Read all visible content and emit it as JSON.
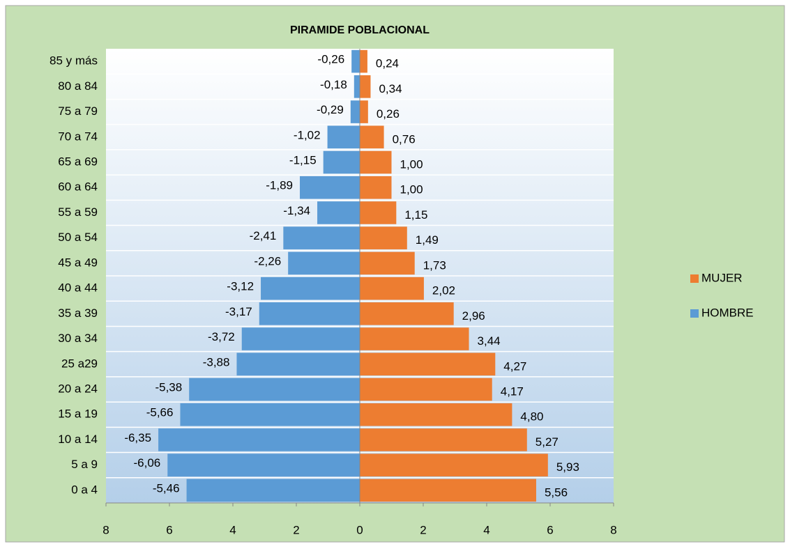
{
  "chart_data": {
    "type": "bar",
    "orientation": "horizontal",
    "title": "PIRAMIDE POBLACIONAL",
    "categories": [
      "85 y más",
      "80 a 84",
      "75 a 79",
      "70 a 74",
      "65 a 69",
      "60 a 64",
      "55 a 59",
      "50 a 54",
      "45 a 49",
      "40 a 44",
      "35 a 39",
      "30 a 34",
      "25 a29",
      "20 a 24",
      "15 a 19",
      "10 a 14",
      "5 a 9",
      "0 a 4"
    ],
    "series": [
      {
        "name": "HOMBRE",
        "color": "#5b9bd5",
        "values": [
          -0.26,
          -0.18,
          -0.29,
          -1.02,
          -1.15,
          -1.89,
          -1.34,
          -2.41,
          -2.26,
          -3.12,
          -3.17,
          -3.72,
          -3.88,
          -5.38,
          -5.66,
          -6.35,
          -6.06,
          -5.46
        ],
        "value_labels": [
          "-0,26",
          "-0,18",
          "-0,29",
          "-1,02",
          "-1,15",
          "-1,89",
          "-1,34",
          "-2,41",
          "-2,26",
          "-3,12",
          "-3,17",
          "-3,72",
          "-3,88",
          "-5,38",
          "-5,66",
          "-6,35",
          "-6,06",
          "-5,46"
        ]
      },
      {
        "name": "MUJER",
        "color": "#ed7d31",
        "values": [
          0.24,
          0.34,
          0.26,
          0.76,
          1.0,
          1.0,
          1.15,
          1.49,
          1.73,
          2.02,
          2.96,
          3.44,
          4.27,
          4.17,
          4.8,
          5.27,
          5.93,
          5.56
        ],
        "value_labels": [
          "0,24",
          "0,34",
          "0,26",
          "0,76",
          "1,00",
          "1,00",
          "1,15",
          "1,49",
          "1,73",
          "2,02",
          "2,96",
          "3,44",
          "4,27",
          "4,17",
          "4,80",
          "5,27",
          "5,93",
          "5,56"
        ]
      }
    ],
    "xlim": [
      -8,
      8
    ],
    "xticks": [
      {
        "value": -8,
        "label": "8"
      },
      {
        "value": -6,
        "label": "6"
      },
      {
        "value": -4,
        "label": "4"
      },
      {
        "value": -2,
        "label": "2"
      },
      0,
      2,
      4,
      6,
      8
    ],
    "legend": "right"
  }
}
